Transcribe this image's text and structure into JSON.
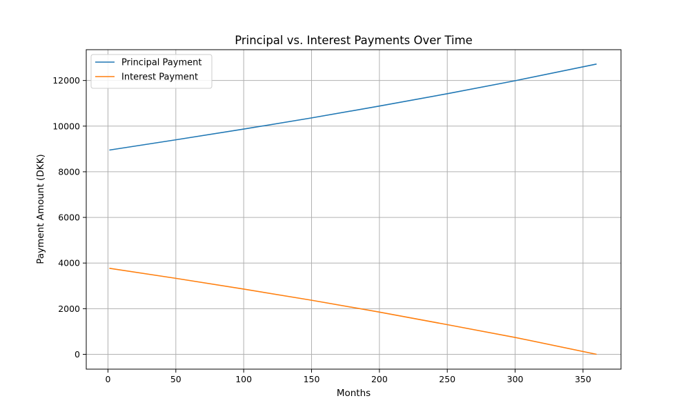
{
  "chart_data": {
    "type": "line",
    "title": "Principal vs. Interest Payments Over Time",
    "xlabel": "Months",
    "ylabel": "Payment Amount (DKK)",
    "xlim": [
      -16,
      378
    ],
    "ylim": [
      -650,
      13350
    ],
    "x_ticks": [
      0,
      50,
      100,
      150,
      200,
      250,
      300,
      350
    ],
    "y_ticks": [
      0,
      2000,
      4000,
      6000,
      8000,
      10000,
      12000
    ],
    "grid": true,
    "legend_position": "top-left",
    "series": [
      {
        "name": "Principal Payment",
        "color": "#1f77b4",
        "x": [
          1,
          50,
          100,
          150,
          200,
          250,
          300,
          360
        ],
        "values": [
          8950,
          9400,
          9870,
          10360,
          10880,
          11420,
          11990,
          12720
        ]
      },
      {
        "name": "Interest Payment",
        "color": "#ff7f0e",
        "x": [
          1,
          50,
          100,
          150,
          200,
          250,
          300,
          360
        ],
        "values": [
          3770,
          3330,
          2860,
          2370,
          1850,
          1300,
          740,
          0
        ]
      }
    ]
  }
}
